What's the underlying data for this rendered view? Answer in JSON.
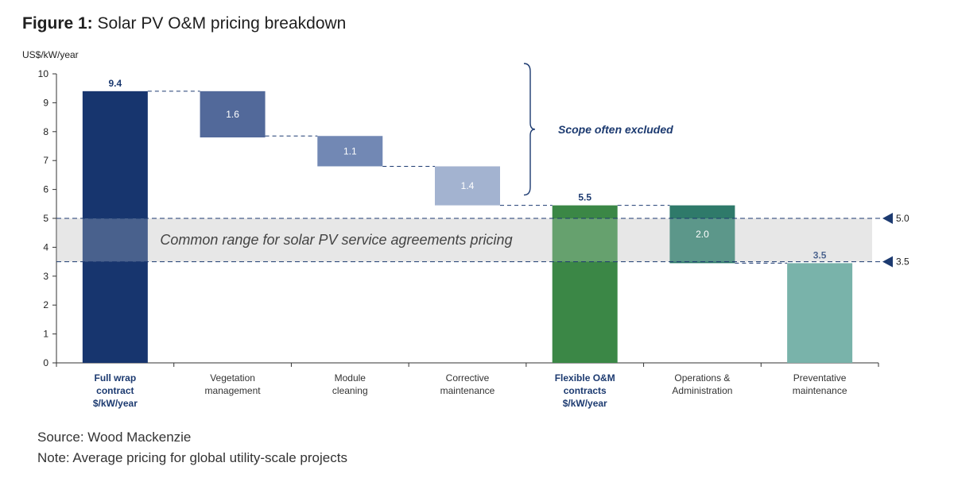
{
  "figure": {
    "label": "Figure 1:",
    "title": "Solar PV O&M pricing breakdown"
  },
  "source": "Source: Wood Mackenzie",
  "note": "Note: Average pricing for global utility-scale projects",
  "colors": {
    "full_wrap": "#17356e",
    "vegetation": "#52699a",
    "module": "#7288b4",
    "corrective": "#a3b3d0",
    "flexible": "#3b8746",
    "operations": "#2f7a6a",
    "preventative": "#79b3aa",
    "band": "#e0e0e0",
    "axis": "#1c3a70"
  },
  "chart_data": {
    "type": "waterfall",
    "ylabel": "US$/kW/year",
    "ylim": [
      0,
      10
    ],
    "yticks": [
      0,
      1,
      2,
      3,
      4,
      5,
      6,
      7,
      8,
      9,
      10
    ],
    "categories": [
      {
        "lines": [
          "Full wrap",
          "contract",
          "$/kW/year"
        ],
        "bold": true
      },
      {
        "lines": [
          "Vegetation",
          "management"
        ],
        "bold": false
      },
      {
        "lines": [
          "Module",
          "cleaning"
        ],
        "bold": false
      },
      {
        "lines": [
          "Corrective",
          "maintenance"
        ],
        "bold": false
      },
      {
        "lines": [
          "Flexible O&M",
          "contracts",
          "$/kW/year"
        ],
        "bold": true
      },
      {
        "lines": [
          "Operations &",
          "Administration"
        ],
        "bold": false
      },
      {
        "lines": [
          "Preventative",
          "maintenance"
        ],
        "bold": false
      }
    ],
    "bars": [
      {
        "label": "9.4",
        "base": 0,
        "top": 9.4,
        "color_key": "full_wrap",
        "kind": "total"
      },
      {
        "label": "1.6",
        "base": 7.8,
        "top": 9.4,
        "color_key": "vegetation",
        "kind": "step"
      },
      {
        "label": "1.1",
        "base": 6.8,
        "top": 7.85,
        "color_key": "module",
        "kind": "step"
      },
      {
        "label": "1.4",
        "base": 5.45,
        "top": 6.8,
        "color_key": "corrective",
        "kind": "step"
      },
      {
        "label": "5.5",
        "base": 0,
        "top": 5.45,
        "color_key": "flexible",
        "kind": "total"
      },
      {
        "label": "2.0",
        "base": 3.45,
        "top": 5.45,
        "color_key": "operations",
        "kind": "step"
      },
      {
        "label": "3.5",
        "base": 0,
        "top": 3.45,
        "color_key": "preventative",
        "kind": "total"
      }
    ],
    "band": {
      "low": 3.5,
      "high": 5.0,
      "label": "Common range for solar PV service agreements pricing",
      "marker_labels": [
        "5.0",
        "3.5"
      ]
    },
    "bracket": {
      "from": 6.0,
      "to": 10.0,
      "label": "Scope often excluded"
    }
  }
}
